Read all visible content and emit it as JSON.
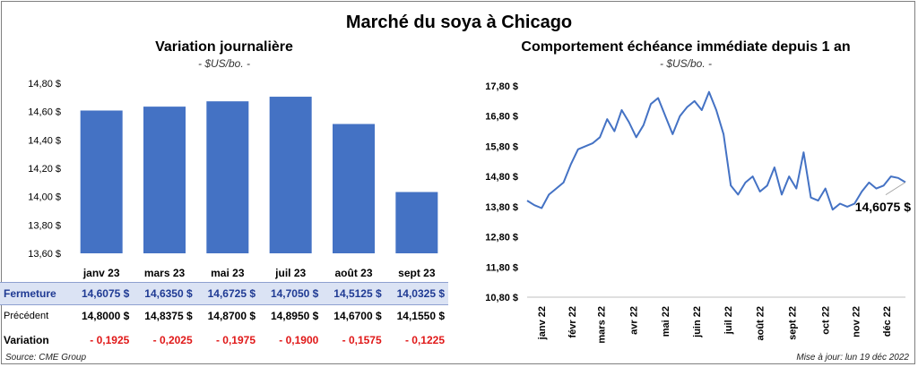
{
  "main_title": "Marché du soya à Chicago",
  "source": "Source: CME Group",
  "updated": "Mise à jour: lun 19 déc 2022",
  "colors": {
    "bar": "#4472c4",
    "line": "#4472c4",
    "close_row_bg": "#dbe3f4",
    "negative": "#e01818"
  },
  "chart_data": [
    {
      "type": "bar",
      "title": "Variation journalière",
      "subtitle": "- $US/bo. -",
      "categories": [
        "janv 23",
        "mars 23",
        "mai 23",
        "juil 23",
        "août 23",
        "sept 23"
      ],
      "values": [
        14.6075,
        14.635,
        14.6725,
        14.705,
        14.5125,
        14.0325
      ],
      "ylim": [
        13.6,
        14.8
      ],
      "yticks": [
        "14,80 $",
        "14,60 $",
        "14,40 $",
        "14,20 $",
        "14,00 $",
        "13,80 $",
        "13,60 $"
      ],
      "ytick_values": [
        14.8,
        14.6,
        14.4,
        14.2,
        14.0,
        13.8,
        13.6
      ],
      "grid": false
    },
    {
      "type": "line",
      "title": "Comportement  échéance immédiate depuis 1 an",
      "subtitle": "- $US/bo. -",
      "ylim": [
        10.8,
        17.8
      ],
      "yticks": [
        "17,80 $",
        "16,80 $",
        "15,80 $",
        "14,80 $",
        "13,80 $",
        "12,80 $",
        "11,80 $",
        "10,80 $"
      ],
      "ytick_values": [
        17.8,
        16.8,
        15.8,
        14.8,
        13.8,
        12.8,
        11.8,
        10.8
      ],
      "xticks": [
        "janv 22",
        "févr 22",
        "mars 22",
        "avr 22",
        "mai 22",
        "juin 22",
        "juil 22",
        "août 22",
        "sept 22",
        "oct 22",
        "nov 22",
        "déc 22"
      ],
      "last_value_label": "14,6075 $",
      "x": [
        "2021-12-20",
        "2021-12-27",
        "2022-01-03",
        "2022-01-10",
        "2022-01-17",
        "2022-01-24",
        "2022-01-31",
        "2022-02-07",
        "2022-02-14",
        "2022-02-21",
        "2022-02-28",
        "2022-03-07",
        "2022-03-14",
        "2022-03-21",
        "2022-03-28",
        "2022-04-04",
        "2022-04-11",
        "2022-04-18",
        "2022-04-25",
        "2022-05-02",
        "2022-05-09",
        "2022-05-16",
        "2022-05-23",
        "2022-05-30",
        "2022-06-06",
        "2022-06-13",
        "2022-06-20",
        "2022-06-27",
        "2022-07-04",
        "2022-07-11",
        "2022-07-18",
        "2022-07-25",
        "2022-08-01",
        "2022-08-08",
        "2022-08-15",
        "2022-08-22",
        "2022-08-29",
        "2022-09-05",
        "2022-09-12",
        "2022-09-19",
        "2022-09-26",
        "2022-10-03",
        "2022-10-10",
        "2022-10-17",
        "2022-10-24",
        "2022-10-31",
        "2022-11-07",
        "2022-11-14",
        "2022-11-21",
        "2022-11-28",
        "2022-12-05",
        "2022-12-12",
        "2022-12-19"
      ],
      "values": [
        14.0,
        13.85,
        13.75,
        14.2,
        14.4,
        14.6,
        15.2,
        15.7,
        15.8,
        15.9,
        16.1,
        16.7,
        16.3,
        17.0,
        16.6,
        16.1,
        16.5,
        17.2,
        17.4,
        16.8,
        16.2,
        16.8,
        17.1,
        17.3,
        17.0,
        17.6,
        17.0,
        16.2,
        14.5,
        14.2,
        14.6,
        14.8,
        14.3,
        14.5,
        15.1,
        14.2,
        14.8,
        14.4,
        15.6,
        14.1,
        14.0,
        14.4,
        13.7,
        13.9,
        13.8,
        13.9,
        14.3,
        14.6,
        14.4,
        14.5,
        14.8,
        14.75,
        14.6075
      ]
    }
  ],
  "table": {
    "rows": [
      {
        "label": "Fermeture",
        "values": [
          "14,6075",
          "14,6350",
          "14,6725",
          "14,7050",
          "14,5125",
          "14,0325"
        ],
        "unit": "$"
      },
      {
        "label": "Précédent",
        "values": [
          "14,8000",
          "14,8375",
          "14,8700",
          "14,8950",
          "14,6700",
          "14,1550"
        ],
        "unit": "$"
      },
      {
        "label": "Variation",
        "values": [
          "- 0,1925",
          "- 0,2025",
          "- 0,1975",
          "- 0,1900",
          "- 0,1575",
          "- 0,1225"
        ],
        "unit": ""
      }
    ]
  }
}
